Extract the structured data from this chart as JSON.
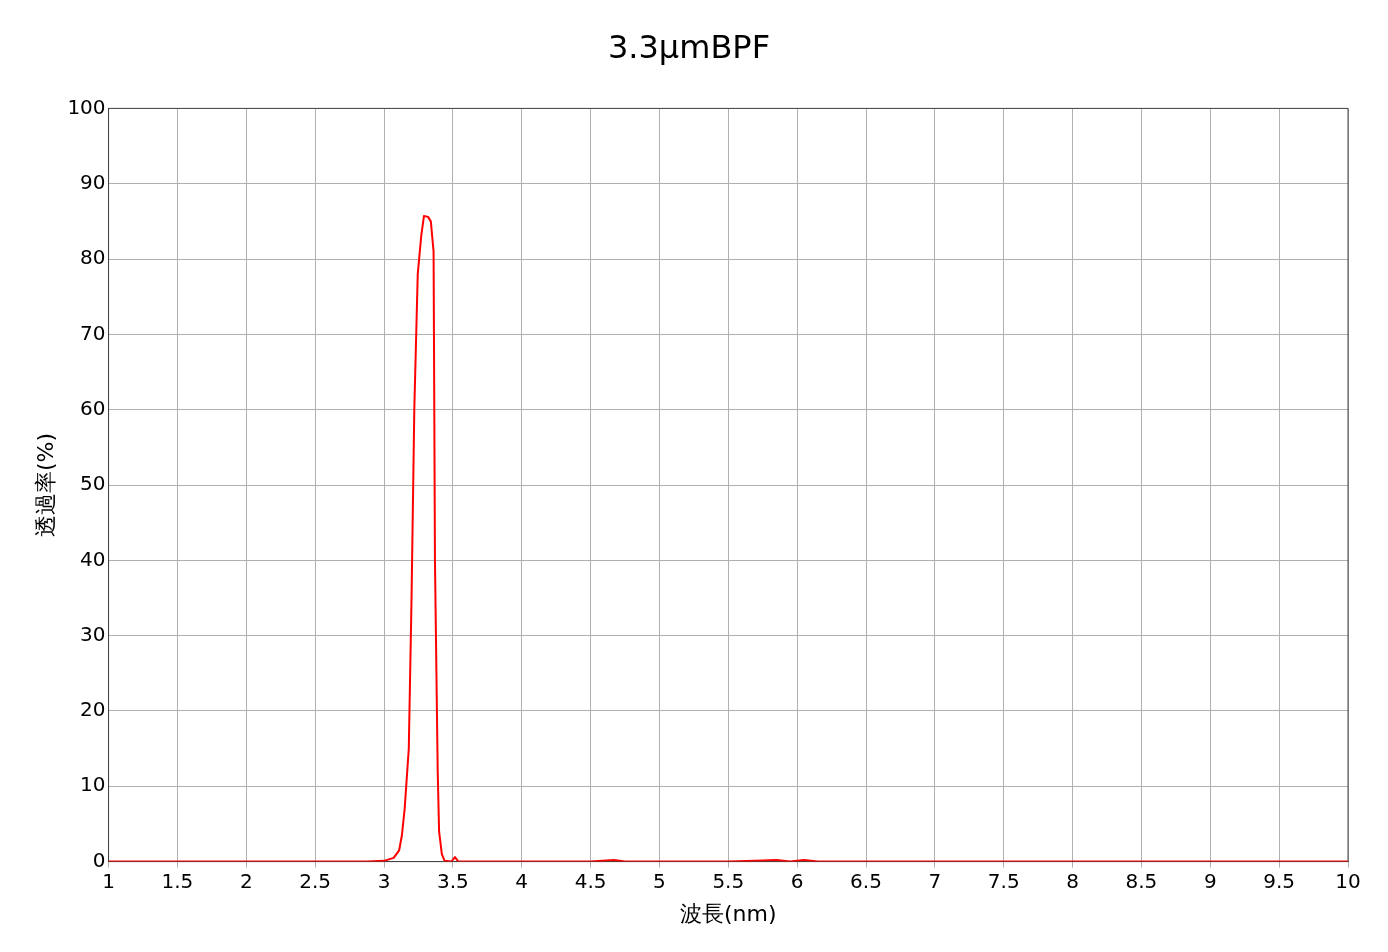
{
  "chart_data": {
    "type": "line",
    "title": "3.3µmBPF",
    "xlabel": "波長(nm)",
    "ylabel": "透過率(%)",
    "xlim": [
      1,
      10
    ],
    "xticks": [
      1,
      1.5,
      2,
      2.5,
      3,
      3.5,
      4,
      4.5,
      5,
      5.5,
      6,
      6.5,
      7,
      7.5,
      8,
      8.5,
      9,
      9.5,
      10
    ],
    "ylim": [
      0,
      100
    ],
    "yticks": [
      0,
      10,
      20,
      30,
      40,
      50,
      60,
      70,
      80,
      90,
      100
    ],
    "grid": true,
    "legend": false,
    "marker": "none",
    "line_style": "solid",
    "series": [
      {
        "color": "#ff0000",
        "x": [
          1,
          2,
          2.88,
          3.0,
          3.07,
          3.11,
          3.13,
          3.15,
          3.18,
          3.2,
          3.22,
          3.245,
          3.27,
          3.29,
          3.32,
          3.34,
          3.36,
          3.37,
          3.39,
          3.4,
          3.42,
          3.44,
          3.49,
          3.515,
          3.54,
          4,
          4.5,
          4.67,
          4.75,
          5.5,
          5.85,
          5.95,
          6.05,
          6.15,
          7,
          8,
          9,
          10
        ],
        "values": [
          0,
          0,
          0,
          0.1,
          0.5,
          1.5,
          3.5,
          7,
          15,
          35,
          60,
          78,
          83,
          85.7,
          85.6,
          85,
          81,
          40,
          12,
          4,
          1,
          0.1,
          0,
          0.6,
          0,
          0,
          0,
          0.2,
          0,
          0,
          0.2,
          0,
          0.2,
          0,
          0,
          0,
          0,
          0
        ]
      }
    ]
  }
}
